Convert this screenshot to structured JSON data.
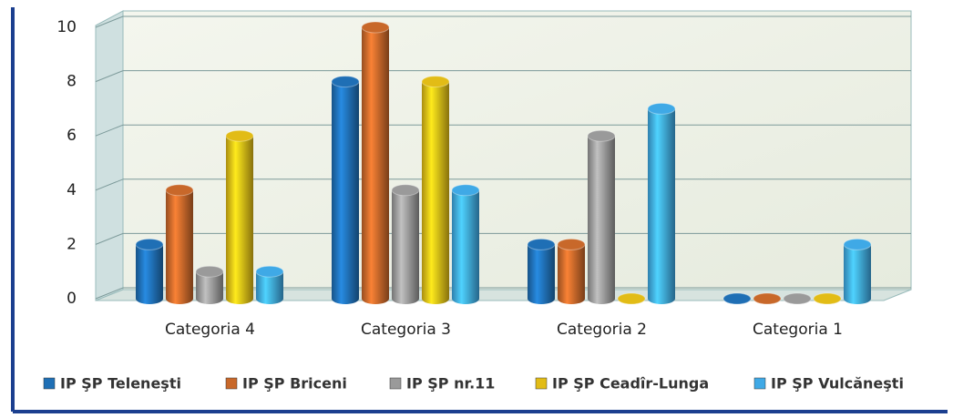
{
  "chart_data": {
    "type": "bar",
    "categories": [
      "Categoria 4",
      "Categoria 3",
      "Categoria 2",
      "Categoria 1"
    ],
    "series": [
      {
        "name": "IP ŞP Teleneşti",
        "color": "#1f6fb5",
        "values": [
          2,
          8,
          2,
          0
        ]
      },
      {
        "name": "IP ŞP Briceni",
        "color": "#c8682a",
        "values": [
          4,
          10,
          2,
          0
        ]
      },
      {
        "name": "IP ŞP nr.11",
        "color": "#9a9a9a",
        "values": [
          1,
          4,
          6,
          0
        ]
      },
      {
        "name": "IP ŞP Ceadîr-Lunga",
        "color": "#e2bc16",
        "values": [
          6,
          8,
          0,
          0
        ]
      },
      {
        "name": "IP ŞP Vulcăneşti",
        "color": "#3fa9e6",
        "values": [
          1,
          4,
          7,
          2
        ]
      }
    ],
    "ylim": [
      0,
      10
    ],
    "yticks": [
      0,
      2,
      4,
      6,
      8,
      10
    ],
    "grid": true,
    "legend": "bottom"
  }
}
